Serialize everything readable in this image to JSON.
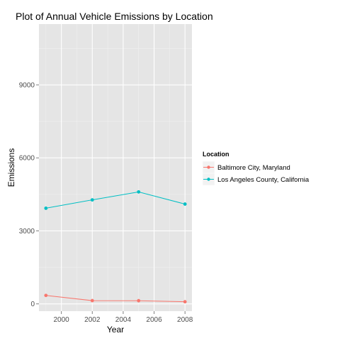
{
  "chart_data": {
    "type": "line",
    "title": "Plot of Annual Vehicle Emissions by Location",
    "xlabel": "Year",
    "ylabel": "Emissions",
    "x": [
      1999,
      2002,
      2005,
      2008
    ],
    "x_ticks": [
      2000,
      2002,
      2004,
      2006,
      2008
    ],
    "y_ticks": [
      0,
      3000,
      6000,
      9000
    ],
    "xlim": [
      1998.55,
      2008.45
    ],
    "ylim": [
      -300,
      11500
    ],
    "grid": true,
    "legend": {
      "title": "Location",
      "position": "right"
    },
    "series": [
      {
        "name": "Baltimore City, Maryland",
        "color": "#F8766D",
        "values": [
          347,
          134,
          130,
          88
        ]
      },
      {
        "name": "Los Angeles County, California",
        "color": "#00BFC4",
        "values": [
          3931,
          4274,
          4602,
          4101
        ]
      }
    ]
  }
}
